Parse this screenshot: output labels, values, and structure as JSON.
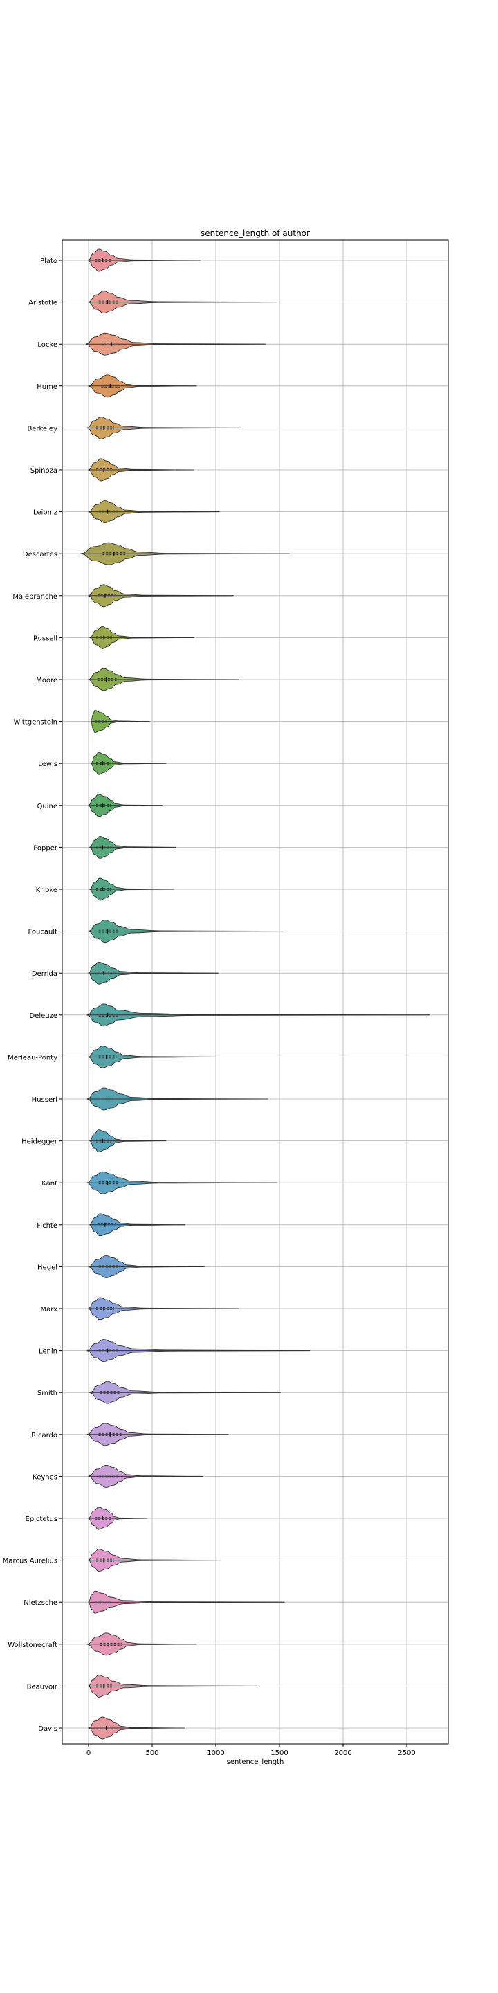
{
  "chart_data": {
    "type": "violin",
    "title": "sentence_length of author",
    "xlabel": "sentence_length",
    "ylabel": "",
    "xlim": [
      -200,
      2800
    ],
    "x_ticks": [
      0,
      500,
      1000,
      1500,
      2000,
      2500
    ],
    "grid": true,
    "orientation": "horizontal",
    "categories": [
      "Plato",
      "Aristotle",
      "Locke",
      "Hume",
      "Berkeley",
      "Spinoza",
      "Leibniz",
      "Descartes",
      "Malebranche",
      "Russell",
      "Moore",
      "Wittgenstein",
      "Lewis",
      "Quine",
      "Popper",
      "Kripke",
      "Foucault",
      "Derrida",
      "Deleuze",
      "Merleau-Ponty",
      "Husserl",
      "Heidegger",
      "Kant",
      "Fichte",
      "Hegel",
      "Marx",
      "Lenin",
      "Smith",
      "Ricardo",
      "Keynes",
      "Epictetus",
      "Marcus Aurelius",
      "Nietzsche",
      "Wollstonecraft",
      "Beauvoir",
      "Davis"
    ],
    "series": [
      {
        "min": 0,
        "q1": 50,
        "median": 110,
        "q3": 180,
        "max": 880,
        "mode": 80,
        "color": "#e8939a"
      },
      {
        "min": 0,
        "q1": 80,
        "median": 150,
        "q3": 230,
        "max": 1480,
        "mode": 120,
        "color": "#e8978f"
      },
      {
        "min": -20,
        "q1": 90,
        "median": 180,
        "q3": 270,
        "max": 1390,
        "mode": 130,
        "color": "#e49c82"
      },
      {
        "min": 0,
        "q1": 100,
        "median": 170,
        "q3": 250,
        "max": 850,
        "mode": 150,
        "color": "#d9975f"
      },
      {
        "min": -10,
        "q1": 60,
        "median": 120,
        "q3": 200,
        "max": 1200,
        "mode": 100,
        "color": "#d0a05f"
      },
      {
        "min": 0,
        "q1": 60,
        "median": 120,
        "q3": 190,
        "max": 830,
        "mode": 100,
        "color": "#c8a45d"
      },
      {
        "min": 0,
        "q1": 80,
        "median": 150,
        "q3": 230,
        "max": 1030,
        "mode": 130,
        "color": "#b9a558"
      },
      {
        "min": -60,
        "q1": 110,
        "median": 200,
        "q3": 300,
        "max": 1580,
        "mode": 160,
        "color": "#a8a354"
      },
      {
        "min": 0,
        "q1": 70,
        "median": 130,
        "q3": 210,
        "max": 1140,
        "mode": 120,
        "color": "#a6a653"
      },
      {
        "min": 10,
        "q1": 60,
        "median": 120,
        "q3": 190,
        "max": 830,
        "mode": 110,
        "color": "#99a84f"
      },
      {
        "min": 0,
        "q1": 70,
        "median": 140,
        "q3": 220,
        "max": 1180,
        "mode": 120,
        "color": "#8aab4e"
      },
      {
        "min": 20,
        "q1": 50,
        "median": 90,
        "q3": 150,
        "max": 480,
        "mode": 50,
        "color": "#7ab04d"
      },
      {
        "min": 20,
        "q1": 60,
        "median": 110,
        "q3": 170,
        "max": 610,
        "mode": 80,
        "color": "#6aac5c"
      },
      {
        "min": 0,
        "q1": 60,
        "median": 110,
        "q3": 180,
        "max": 580,
        "mode": 80,
        "color": "#5aa96a"
      },
      {
        "min": 10,
        "q1": 60,
        "median": 110,
        "q3": 180,
        "max": 690,
        "mode": 90,
        "color": "#55a77a"
      },
      {
        "min": 10,
        "q1": 60,
        "median": 110,
        "q3": 180,
        "max": 670,
        "mode": 90,
        "color": "#55a684"
      },
      {
        "min": 0,
        "q1": 80,
        "median": 150,
        "q3": 240,
        "max": 1540,
        "mode": 130,
        "color": "#54a58e"
      },
      {
        "min": 0,
        "q1": 60,
        "median": 120,
        "q3": 190,
        "max": 1020,
        "mode": 80,
        "color": "#54a498"
      },
      {
        "min": -10,
        "q1": 80,
        "median": 150,
        "q3": 230,
        "max": 2680,
        "mode": 120,
        "color": "#55a3a0"
      },
      {
        "min": 0,
        "q1": 80,
        "median": 140,
        "q3": 220,
        "max": 1000,
        "mode": 110,
        "color": "#56a3a8"
      },
      {
        "min": -10,
        "q1": 90,
        "median": 160,
        "q3": 250,
        "max": 1410,
        "mode": 120,
        "color": "#57a2b0"
      },
      {
        "min": 10,
        "q1": 60,
        "median": 110,
        "q3": 180,
        "max": 610,
        "mode": 80,
        "color": "#59a3bb"
      },
      {
        "min": -10,
        "q1": 80,
        "median": 150,
        "q3": 240,
        "max": 1480,
        "mode": 110,
        "color": "#5ba2c4"
      },
      {
        "min": 10,
        "q1": 70,
        "median": 130,
        "q3": 210,
        "max": 760,
        "mode": 90,
        "color": "#64a0cc"
      },
      {
        "min": 0,
        "q1": 80,
        "median": 160,
        "q3": 250,
        "max": 910,
        "mode": 140,
        "color": "#70a0d2"
      },
      {
        "min": 0,
        "q1": 60,
        "median": 120,
        "q3": 200,
        "max": 1180,
        "mode": 90,
        "color": "#8ba2dc"
      },
      {
        "min": -10,
        "q1": 80,
        "median": 150,
        "q3": 240,
        "max": 1740,
        "mode": 120,
        "color": "#a3a2de"
      },
      {
        "min": 10,
        "q1": 90,
        "median": 160,
        "q3": 250,
        "max": 1510,
        "mode": 150,
        "color": "#b2a2dd"
      },
      {
        "min": -10,
        "q1": 80,
        "median": 170,
        "q3": 260,
        "max": 1100,
        "mode": 130,
        "color": "#c2a0da"
      },
      {
        "min": 0,
        "q1": 80,
        "median": 160,
        "q3": 250,
        "max": 900,
        "mode": 140,
        "color": "#cd9fd8"
      },
      {
        "min": 0,
        "q1": 50,
        "median": 110,
        "q3": 180,
        "max": 460,
        "mode": 80,
        "color": "#d99bd3"
      },
      {
        "min": 0,
        "q1": 60,
        "median": 120,
        "q3": 200,
        "max": 1040,
        "mode": 80,
        "color": "#df98c9"
      },
      {
        "min": 0,
        "q1": 50,
        "median": 90,
        "q3": 170,
        "max": 1540,
        "mode": 50,
        "color": "#e297c0"
      },
      {
        "min": -10,
        "q1": 90,
        "median": 160,
        "q3": 260,
        "max": 850,
        "mode": 140,
        "color": "#e497b5"
      },
      {
        "min": 0,
        "q1": 60,
        "median": 120,
        "q3": 190,
        "max": 1340,
        "mode": 80,
        "color": "#e598aa"
      },
      {
        "min": 0,
        "q1": 80,
        "median": 140,
        "q3": 210,
        "max": 760,
        "mode": 110,
        "color": "#e7999f"
      }
    ]
  }
}
